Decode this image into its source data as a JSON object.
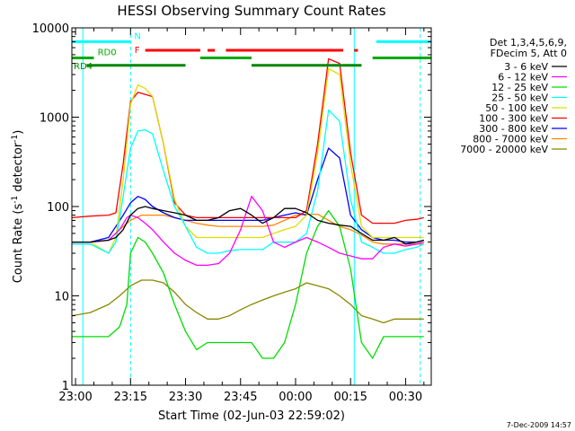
{
  "chart_data": {
    "type": "line",
    "title": "HESSI Observing Summary Count Rates",
    "xlabel": "Start Time (02-Jun-03 22:59:02)",
    "ylabel": "Count Rate (s",
    "ylabel_sup1": "-1",
    "ylabel_mid": " detector",
    "ylabel_sup2": "-1",
    "ylabel_end": ")",
    "y_scale": "log",
    "xlim": [
      "22:59:02",
      "00:37:00"
    ],
    "ylim": [
      1,
      10000
    ],
    "x_ticks": [
      "23:00",
      "23:15",
      "23:30",
      "23:45",
      "00:00",
      "00:15",
      "00:30"
    ],
    "y_ticks": [
      "1",
      "10",
      "100",
      "1000",
      "10000"
    ],
    "legend_header": [
      "Det 1,3,4,5,6,9,",
      "FDecim 5, Att 0"
    ],
    "legend_position": "right",
    "series": [
      {
        "name": "3 - 6 keV",
        "color": "#000000",
        "x": [
          "22:59",
          "23:04",
          "23:09",
          "23:11",
          "23:13",
          "23:15",
          "23:17",
          "23:19",
          "23:21",
          "23:24",
          "23:27",
          "23:30",
          "23:33",
          "23:36",
          "23:39",
          "23:42",
          "23:45",
          "23:48",
          "23:51",
          "23:54",
          "23:57",
          "00:00",
          "00:03",
          "00:06",
          "00:09",
          "00:12",
          "00:15",
          "00:18",
          "00:21",
          "00:24",
          "00:27",
          "00:30",
          "00:33",
          "00:35"
        ],
        "values": [
          40,
          40,
          42,
          45,
          55,
          80,
          95,
          100,
          95,
          90,
          85,
          80,
          70,
          70,
          75,
          90,
          95,
          80,
          65,
          75,
          95,
          95,
          85,
          70,
          65,
          62,
          60,
          50,
          42,
          42,
          45,
          38,
          40,
          42
        ]
      },
      {
        "name": "6 - 12 keV",
        "color": "#ff00ff",
        "x": [
          "22:59",
          "23:04",
          "23:09",
          "23:12",
          "23:14",
          "23:15",
          "23:17",
          "23:19",
          "23:21",
          "23:24",
          "23:27",
          "23:30",
          "23:33",
          "23:36",
          "23:39",
          "23:42",
          "23:45",
          "23:48",
          "23:51",
          "23:54",
          "23:57",
          "00:00",
          "00:03",
          "00:06",
          "00:09",
          "00:12",
          "00:15",
          "00:18",
          "00:21",
          "00:24",
          "00:27",
          "00:30",
          "00:33",
          "00:35"
        ],
        "values": [
          40,
          40,
          42,
          55,
          75,
          80,
          75,
          65,
          55,
          40,
          30,
          25,
          22,
          22,
          23,
          30,
          55,
          130,
          90,
          40,
          35,
          40,
          45,
          40,
          35,
          30,
          28,
          26,
          26,
          35,
          38,
          36,
          38,
          40
        ]
      },
      {
        "name": "12 - 25 keV",
        "color": "#00dd00",
        "x": [
          "22:59",
          "23:04",
          "23:09",
          "23:12",
          "23:14",
          "23:15",
          "23:17",
          "23:19",
          "23:21",
          "23:24",
          "23:27",
          "23:30",
          "23:33",
          "23:36",
          "23:39",
          "23:42",
          "23:45",
          "23:48",
          "23:51",
          "23:54",
          "23:57",
          "00:00",
          "00:03",
          "00:06",
          "00:09",
          "00:12",
          "00:15",
          "00:18",
          "00:21",
          "00:24",
          "00:27",
          "00:30",
          "00:33",
          "00:35"
        ],
        "values": [
          3.5,
          3.5,
          3.5,
          4.5,
          8,
          30,
          45,
          40,
          30,
          18,
          8,
          4,
          2.5,
          3,
          3,
          3,
          3,
          3,
          2,
          2,
          3,
          8,
          30,
          60,
          90,
          60,
          20,
          3,
          2,
          3.5,
          3.5,
          3.5,
          3.5,
          3.5
        ]
      },
      {
        "name": "25 - 50 keV",
        "color": "#00ffff",
        "x": [
          "22:59",
          "23:04",
          "23:09",
          "23:11",
          "23:13",
          "23:15",
          "23:17",
          "23:19",
          "23:21",
          "23:24",
          "23:27",
          "23:30",
          "23:33",
          "23:36",
          "23:39",
          "23:42",
          "23:45",
          "23:48",
          "23:51",
          "23:54",
          "23:57",
          "00:00",
          "00:03",
          "00:06",
          "00:09",
          "00:12",
          "00:15",
          "00:18",
          "00:21",
          "00:24",
          "00:27",
          "00:30",
          "00:33",
          "00:35"
        ],
        "values": [
          38,
          38,
          30,
          40,
          130,
          450,
          700,
          720,
          650,
          250,
          100,
          60,
          35,
          30,
          30,
          32,
          33,
          33,
          33,
          40,
          40,
          40,
          50,
          150,
          1200,
          900,
          120,
          40,
          35,
          30,
          30,
          33,
          35,
          38
        ]
      },
      {
        "name": "50 - 100 keV",
        "color": "#dddd00",
        "x": [
          "22:59",
          "23:04",
          "23:09",
          "23:11",
          "23:13",
          "23:15",
          "23:17",
          "23:19",
          "23:21",
          "23:24",
          "23:27",
          "23:30",
          "23:33",
          "23:36",
          "23:39",
          "23:42",
          "23:45",
          "23:48",
          "23:51",
          "23:54",
          "23:57",
          "00:00",
          "00:03",
          "00:06",
          "00:09",
          "00:12",
          "00:15",
          "00:18",
          "00:21",
          "00:24",
          "00:27",
          "00:30",
          "00:33",
          "00:35"
        ],
        "values": [
          40,
          40,
          30,
          45,
          200,
          1400,
          2300,
          2100,
          1700,
          500,
          120,
          60,
          45,
          45,
          45,
          45,
          45,
          45,
          45,
          50,
          55,
          60,
          80,
          400,
          3500,
          3000,
          300,
          60,
          45,
          45,
          45,
          45,
          45,
          45
        ]
      },
      {
        "name": "100 - 300 keV",
        "color": "#ff0000",
        "x": [
          "22:59",
          "23:04",
          "23:09",
          "23:11",
          "23:13",
          "23:15",
          "23:17",
          "23:19",
          "23:21",
          "23:24",
          "23:27",
          "23:30",
          "23:33",
          "23:36",
          "23:39",
          "23:42",
          "23:45",
          "23:48",
          "23:51",
          "23:54",
          "23:57",
          "00:00",
          "00:03",
          "00:06",
          "00:09",
          "00:12",
          "00:15",
          "00:18",
          "00:21",
          "00:24",
          "00:27",
          "00:30",
          "00:33",
          "00:35"
        ],
        "values": [
          75,
          78,
          80,
          85,
          300,
          1500,
          1900,
          1800,
          1700,
          500,
          110,
          80,
          75,
          75,
          75,
          75,
          75,
          75,
          75,
          75,
          75,
          75,
          90,
          500,
          4500,
          4000,
          400,
          80,
          65,
          65,
          65,
          70,
          72,
          75
        ]
      },
      {
        "name": "300 - 800 keV",
        "color": "#0000ff",
        "x": [
          "22:59",
          "23:04",
          "23:09",
          "23:11",
          "23:13",
          "23:15",
          "23:17",
          "23:19",
          "23:21",
          "23:24",
          "23:27",
          "23:30",
          "23:33",
          "23:36",
          "23:39",
          "23:42",
          "23:45",
          "23:48",
          "23:51",
          "23:54",
          "23:57",
          "00:00",
          "00:03",
          "00:06",
          "00:09",
          "00:12",
          "00:15",
          "00:18",
          "00:21",
          "00:24",
          "00:27",
          "00:30",
          "00:33",
          "00:35"
        ],
        "values": [
          40,
          40,
          45,
          60,
          80,
          110,
          130,
          120,
          100,
          85,
          75,
          70,
          70,
          70,
          70,
          70,
          70,
          70,
          70,
          75,
          80,
          85,
          80,
          200,
          450,
          350,
          80,
          55,
          45,
          42,
          42,
          40,
          40,
          42
        ]
      },
      {
        "name": "800 - 7000 keV",
        "color": "#ff8800",
        "x": [
          "22:59",
          "23:04",
          "23:09",
          "23:12",
          "23:15",
          "23:18",
          "23:21",
          "23:24",
          "23:27",
          "23:30",
          "23:33",
          "23:36",
          "23:39",
          "23:42",
          "23:45",
          "23:48",
          "23:51",
          "23:54",
          "23:57",
          "00:00",
          "00:03",
          "00:06",
          "00:09",
          "00:12",
          "00:15",
          "00:18",
          "00:21",
          "00:24",
          "00:27",
          "00:30",
          "00:33",
          "00:35"
        ],
        "values": [
          40,
          40,
          42,
          55,
          70,
          80,
          80,
          80,
          75,
          70,
          65,
          62,
          60,
          60,
          60,
          60,
          60,
          62,
          70,
          80,
          82,
          82,
          70,
          60,
          55,
          48,
          40,
          38,
          38,
          38,
          38,
          38
        ]
      },
      {
        "name": "7000 - 20000 keV",
        "color": "#888800",
        "x": [
          "22:59",
          "23:04",
          "23:09",
          "23:12",
          "23:15",
          "23:18",
          "23:21",
          "23:24",
          "23:27",
          "23:30",
          "23:33",
          "23:36",
          "23:39",
          "23:42",
          "23:45",
          "23:48",
          "23:51",
          "23:54",
          "23:57",
          "00:00",
          "00:03",
          "00:06",
          "00:09",
          "00:12",
          "00:15",
          "00:18",
          "00:21",
          "00:24",
          "00:27",
          "00:30",
          "00:33",
          "00:35"
        ],
        "values": [
          6,
          6.5,
          8,
          10,
          13,
          15,
          15,
          14,
          11,
          8,
          6.5,
          5.5,
          5.5,
          6,
          7,
          8,
          9,
          10,
          11,
          12,
          14,
          13,
          12,
          10,
          8,
          6,
          5.5,
          5,
          5.5,
          5.5,
          5.5,
          5.5
        ]
      }
    ],
    "flags": [
      {
        "label": "N",
        "color": "#00ffff",
        "value": 7000,
        "segments": [
          [
            "22:59",
            "23:15"
          ],
          [
            "00:22",
            "00:37"
          ]
        ]
      },
      {
        "label": "F",
        "color": "#ff0000",
        "value": 5600,
        "segments": [
          [
            "23:19",
            "23:34"
          ],
          [
            "23:36",
            "23:38"
          ],
          [
            "23:41",
            "00:13"
          ],
          [
            "00:16",
            "00:17"
          ]
        ]
      },
      {
        "label": "RD0",
        "color": "#00aa00",
        "value": 4600,
        "segments": [
          [
            "22:59",
            "23:05"
          ],
          [
            "23:34",
            "23:48"
          ],
          [
            "00:21",
            "00:37"
          ]
        ]
      },
      {
        "label": "RD4",
        "color": "#008800",
        "value": 3800,
        "segments": [
          [
            "23:03",
            "23:30"
          ],
          [
            "23:48",
            "00:18"
          ]
        ]
      }
    ],
    "vertical_markers": [
      {
        "time": "23:02",
        "color": "#00ffff",
        "style": "solid"
      },
      {
        "time": "23:15",
        "color": "#00ffff",
        "style": "dashed"
      },
      {
        "time": "00:16",
        "color": "#00ffff",
        "style": "solid"
      },
      {
        "time": "00:34",
        "color": "#00ffff",
        "style": "dashed"
      }
    ]
  },
  "footer_stamp": "7-Dec-2009 14:57"
}
